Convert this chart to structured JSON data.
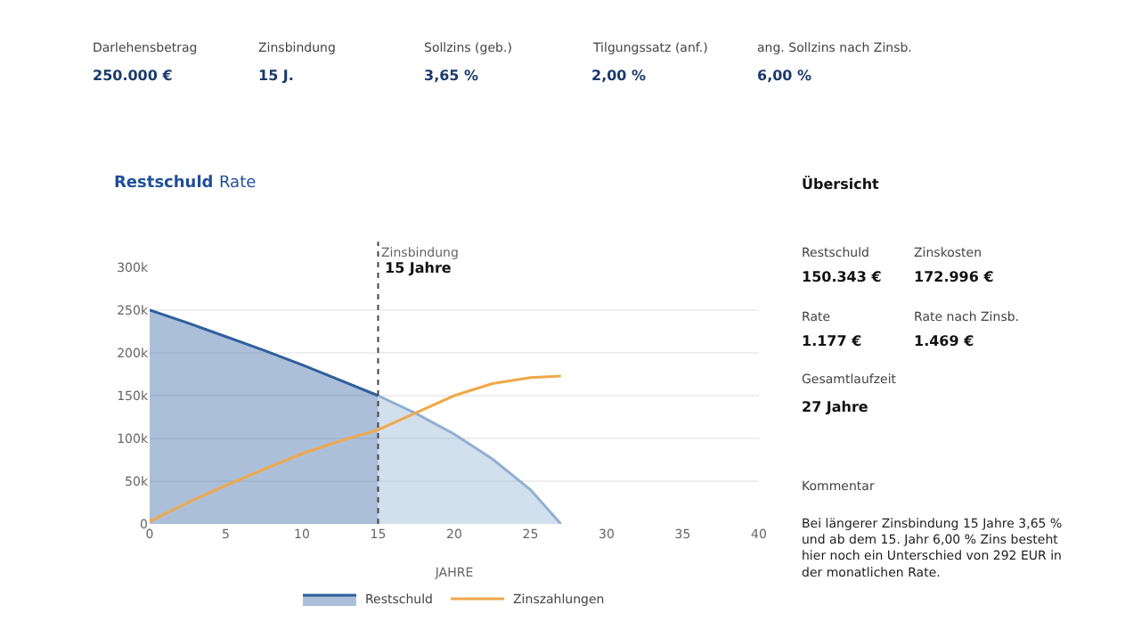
{
  "chart_data": {
    "type": "area",
    "xlabel": "JAHRE",
    "xlim": [
      0,
      40
    ],
    "xticks": [
      0,
      5,
      10,
      15,
      20,
      25,
      30,
      35,
      40
    ],
    "ylim": [
      0,
      300000
    ],
    "yticks": [
      {
        "value": 0,
        "label": "0"
      },
      {
        "value": 50000,
        "label": "50k"
      },
      {
        "value": 100000,
        "label": "100k"
      },
      {
        "value": 150000,
        "label": "150k"
      },
      {
        "value": 200000,
        "label": "200k"
      },
      {
        "value": 250000,
        "label": "250k"
      },
      {
        "value": 300000,
        "label": "300k"
      }
    ],
    "grid": "y",
    "legend": "bottom",
    "series": [
      {
        "name": "Restschuld",
        "color": "#2f5f9e",
        "x": [
          0,
          2.5,
          5,
          7.5,
          10,
          12.5,
          15
        ],
        "values": [
          250000,
          235000,
          219000,
          203000,
          186000,
          168000,
          150000
        ]
      },
      {
        "color": "#8fb0d3",
        "x": [
          15,
          17.5,
          20,
          22.5,
          25,
          27
        ],
        "values": [
          150000,
          129000,
          105000,
          76000,
          40000,
          0
        ]
      },
      {
        "name": "Zinszahlungen",
        "type": "line",
        "color": "#f0a848",
        "x": [
          0,
          2.5,
          5,
          7.5,
          10,
          12.5,
          15,
          17.5,
          20,
          22.5,
          25,
          27
        ],
        "values": [
          3000,
          25000,
          45000,
          64000,
          82000,
          97000,
          110000,
          130000,
          150000,
          164000,
          171000,
          173000
        ]
      }
    ],
    "ref_lines": [
      {
        "axis": "x",
        "value": 15,
        "label": "Zinsbindung",
        "line_style": "dotted",
        "color": "#444444"
      }
    ],
    "annotations": [
      "Darlehensbetrag",
      "250.000 €",
      "Zinsbindung",
      "15 J.",
      "Sollzins (geb.)",
      "3,65 %",
      "Tilgungssatz (anf.)",
      "2,00 %",
      "ang. Sollzins nach Zinsb.",
      "6,00 %",
      "Restschuld",
      "Rate",
      "Übersicht",
      "Restschuld",
      "150.343 €",
      "Zinskosten",
      "172.996 €",
      "Rate",
      "1.177 €",
      "Rate nach Zinsb.",
      "1.469 €",
      "Gesamtlaufzeit",
      "27 Jahre",
      "Kommentar",
      "Bei längerer Zinsbindung 15 Jahre 3,65 % und ab dem 15. Jahr 6,00 % Zins besteht hier noch ein Unterschied von 292 EUR in der monatlichen Rate.",
      {
        "text": "15 Jahre",
        "x": 15,
        "y": 300000
      }
    ]
  }
}
